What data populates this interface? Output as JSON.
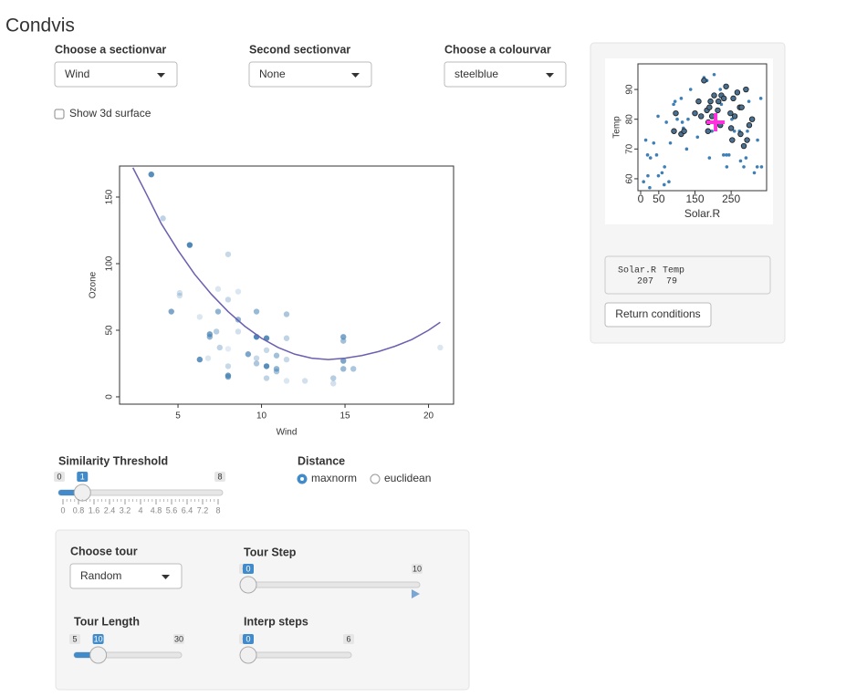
{
  "header": {
    "title": "Condvis"
  },
  "controls": {
    "sectionvar": {
      "label": "Choose a sectionvar",
      "value": "Wind"
    },
    "sectionvar2": {
      "label": "Second sectionvar",
      "value": "None"
    },
    "colourvar": {
      "label": "Choose a colourvar",
      "value": "steelblue"
    },
    "surface": {
      "label": "Show 3d surface",
      "checked": false
    }
  },
  "chart_data": [
    {
      "type": "scatter",
      "x_label": "Wind",
      "y_label": "Ozone",
      "color": "#4682b4",
      "x": [
        3.4,
        4.1,
        5.7,
        8.0,
        4.6,
        5.1,
        5.1,
        6.3,
        7.4,
        8.0,
        8.6,
        7.4,
        9.7,
        11.5,
        6.9,
        6.9,
        7.3,
        8.6,
        8.6,
        9.7,
        10.3,
        11.5,
        14.9,
        14.9,
        6.3,
        6.8,
        7.5,
        8.0,
        9.2,
        9.7,
        10.3,
        10.9,
        11.5,
        10.3,
        9.7,
        10.9,
        10.9,
        8.0,
        8.0,
        8.0,
        10.3,
        11.5,
        12.6,
        14.3,
        14.3,
        14.9,
        14.9,
        15.5,
        20.7
      ],
      "y": [
        167,
        134,
        114,
        107,
        64,
        78,
        76,
        60,
        81,
        73,
        79,
        64,
        64,
        62,
        47,
        45,
        49,
        58,
        49,
        45,
        44,
        44,
        45,
        42,
        28,
        29,
        37,
        36,
        32,
        29,
        35,
        31,
        28,
        23,
        25,
        21,
        19,
        23,
        16,
        15,
        14,
        12,
        12,
        14,
        10,
        27,
        21,
        21,
        37
      ],
      "alphas": [
        0.9,
        0.35,
        0.95,
        0.3,
        0.7,
        0.25,
        0.25,
        0.2,
        0.2,
        0.3,
        0.2,
        0.6,
        0.55,
        0.45,
        0.75,
        0.6,
        0.4,
        0.6,
        0.25,
        0.95,
        0.9,
        0.35,
        0.7,
        0.5,
        0.85,
        0.2,
        0.35,
        0.15,
        0.7,
        0.3,
        0.3,
        0.5,
        0.3,
        0.9,
        0.45,
        0.6,
        0.45,
        0.3,
        0.8,
        0.65,
        0.35,
        0.2,
        0.25,
        0.4,
        0.25,
        0.7,
        0.55,
        0.45,
        0.2
      ],
      "curve": {
        "color": "#6a5fb0",
        "x": [
          2.3,
          3,
          4,
          5,
          6,
          7,
          8,
          9,
          10,
          11,
          12,
          13,
          14,
          15,
          16,
          17,
          18,
          19,
          20,
          20.7
        ],
        "y": [
          172,
          155,
          130,
          110,
          92,
          77,
          64,
          53,
          44,
          37,
          32,
          29,
          28,
          29,
          31,
          34,
          38,
          43,
          50,
          56
        ]
      },
      "xlim": [
        1.5,
        21.5
      ],
      "ylim": [
        -5.5,
        173.3
      ],
      "xticks": [
        5,
        10,
        15,
        20
      ],
      "yticks": [
        0,
        50,
        100,
        150
      ]
    },
    {
      "type": "scatter",
      "x_label": "Solar.R",
      "y_label": "Temp",
      "series": [
        {
          "color": "#3f7fb5",
          "x": [
            8,
            14,
            19,
            20,
            25,
            27,
            36,
            44,
            48,
            49,
            59,
            65,
            66,
            71,
            78,
            82,
            91,
            95,
            101,
            112,
            115,
            118,
            127,
            131,
            138,
            148,
            157,
            175,
            183,
            190,
            197,
            203,
            220,
            223,
            229,
            237,
            238,
            244,
            252,
            259,
            273,
            276,
            285,
            291,
            295,
            299,
            314,
            322,
            334,
            332,
            323
          ],
          "y": [
            59,
            73,
            68,
            61,
            57,
            67,
            72,
            68,
            81,
            61,
            62,
            58,
            64,
            79,
            59,
            72,
            85,
            86,
            80,
            87,
            79,
            77,
            70,
            80,
            90,
            82,
            74,
            94,
            93,
            67,
            76,
            95,
            90,
            85,
            68,
            68,
            64,
            68,
            80,
            76,
            76,
            66,
            64,
            67,
            76,
            86,
            62,
            64,
            64,
            87,
            73
          ]
        },
        {
          "color": "#4a6f8f",
          "stroke": "#1a1a1a",
          "x": [
            150,
            160,
            167,
            175,
            183,
            186,
            187,
            190,
            193,
            197,
            203,
            207,
            213,
            215,
            220,
            223,
            230,
            236,
            248,
            250,
            253,
            256,
            260,
            267,
            274,
            276,
            279,
            285,
            291,
            294,
            300,
            308,
            112,
            120,
            92,
            97
          ],
          "y": [
            82,
            86,
            81,
            93,
            83,
            76,
            79,
            84,
            86,
            81,
            88,
            79,
            83,
            86,
            78,
            88,
            87,
            91,
            82,
            77,
            73,
            87,
            81,
            89,
            84,
            75,
            84,
            71,
            90,
            73,
            78,
            80,
            75,
            76,
            76,
            82
          ]
        }
      ],
      "cross_color": "#ff33dd",
      "xlim": [
        -7.6,
        348
      ],
      "ylim": [
        56,
        98.6
      ],
      "xticks": [
        0,
        50,
        150,
        250
      ],
      "yticks": [
        60,
        70,
        80,
        90
      ]
    }
  ],
  "conditions": {
    "columns": [
      "Solar.R",
      "Temp"
    ],
    "values": [
      207,
      79
    ]
  },
  "button": "Return conditions",
  "similarity": {
    "label": "Similarity Threshold",
    "min": 0,
    "max": 8,
    "value": 1,
    "ticks": [
      0,
      0.8,
      1.6,
      2.4,
      3.2,
      4,
      4.8,
      5.6,
      6.4,
      7.2,
      8
    ]
  },
  "distance": {
    "label": "Distance",
    "options": [
      "maxnorm",
      "euclidean"
    ],
    "selected": 0
  },
  "tour": {
    "choose": {
      "label": "Choose tour",
      "value": "Random"
    },
    "step": {
      "label": "Tour Step",
      "min": 0,
      "max": 10,
      "value": 0
    },
    "length": {
      "label": "Tour Length",
      "min": 5,
      "max": 30,
      "value": 10
    },
    "interp": {
      "label": "Interp steps",
      "min": 0,
      "max": 6,
      "value": 0
    }
  }
}
